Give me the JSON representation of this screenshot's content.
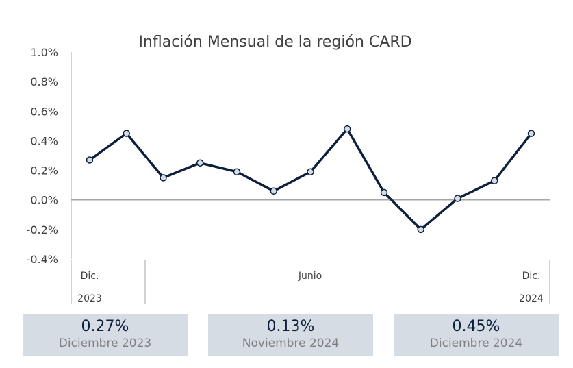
{
  "chart_data": {
    "type": "line",
    "title": "Inflación Mensual de la región CARD",
    "xlabel": "",
    "ylabel": "",
    "ylim": [
      -0.4,
      1.0
    ],
    "yticks": [
      "1.0%",
      "0.8%",
      "0.6%",
      "0.4%",
      "0.2%",
      "0.0%",
      "-0.2%",
      "-0.4%"
    ],
    "x_category_labels": [
      {
        "month": "Dic.",
        "year": "2023"
      },
      {
        "month": "Junio",
        "year": ""
      },
      {
        "month": "Dic.",
        "year": "2024"
      }
    ],
    "series": [
      {
        "values": [
          0.27,
          0.45,
          0.15,
          0.25,
          0.19,
          0.06,
          0.19,
          0.48,
          0.05,
          -0.2,
          0.01,
          0.13,
          0.45
        ]
      }
    ],
    "colors": {
      "line": "#0d1f3c",
      "marker_fill": "#d6dce4",
      "zero_line": "#a6a6a6"
    },
    "grid": false,
    "legend": "none"
  },
  "cards": [
    {
      "value": "0.27%",
      "label": "Diciembre 2023"
    },
    {
      "value": "0.13%",
      "label": "Noviembre 2024"
    },
    {
      "value": "0.45%",
      "label": "Diciembre 2024"
    }
  ]
}
